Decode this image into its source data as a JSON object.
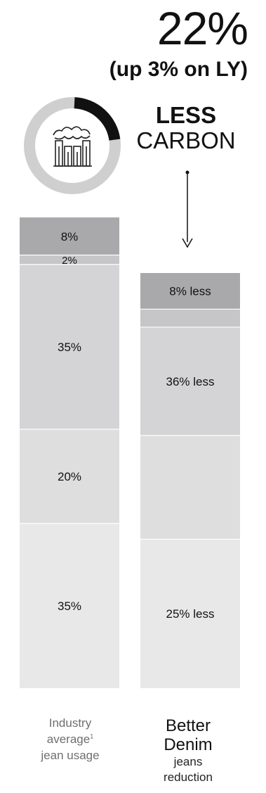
{
  "headline": {
    "value": "22%",
    "change": "(up 3% on LY)",
    "label_bold": "LESS",
    "label_regular": "CARBON"
  },
  "colors": {
    "seg_dark": "#a9a9ab",
    "seg_mid": "#c6c6c8",
    "seg_light": "#d4d4d6",
    "seg_lighter": "#dededf",
    "seg_lightest": "#e8e8e9",
    "donut_track": "#cfcfcf",
    "donut_fill": "#111111"
  },
  "chart_data": {
    "type": "bar",
    "stacked": true,
    "orientation": "vertical",
    "donut": {
      "value": 22,
      "total": 100
    },
    "categories": [
      "Industry average jean usage",
      "Better Denim jeans reduction"
    ],
    "left_segments": [
      {
        "value": 8,
        "label": "8%"
      },
      {
        "value": 2,
        "label": "2%"
      },
      {
        "value": 35,
        "label": "35%"
      },
      {
        "value": 20,
        "label": "20%"
      },
      {
        "value": 35,
        "label": "35%"
      }
    ],
    "right_segments": [
      {
        "value": 8,
        "label": "8% less"
      },
      {
        "value": 4,
        "label": ""
      },
      {
        "value": 24,
        "label": "36% less"
      },
      {
        "value": 23,
        "label": ""
      },
      {
        "value": 33,
        "label": "25% less"
      }
    ]
  },
  "captions": {
    "left_line1": "Industry",
    "left_line2": "average",
    "left_sup": "1",
    "left_line3": "jean usage",
    "right_line1": "Better",
    "right_line2": "Denim",
    "right_line3": "jeans",
    "right_line4": "reduction"
  }
}
